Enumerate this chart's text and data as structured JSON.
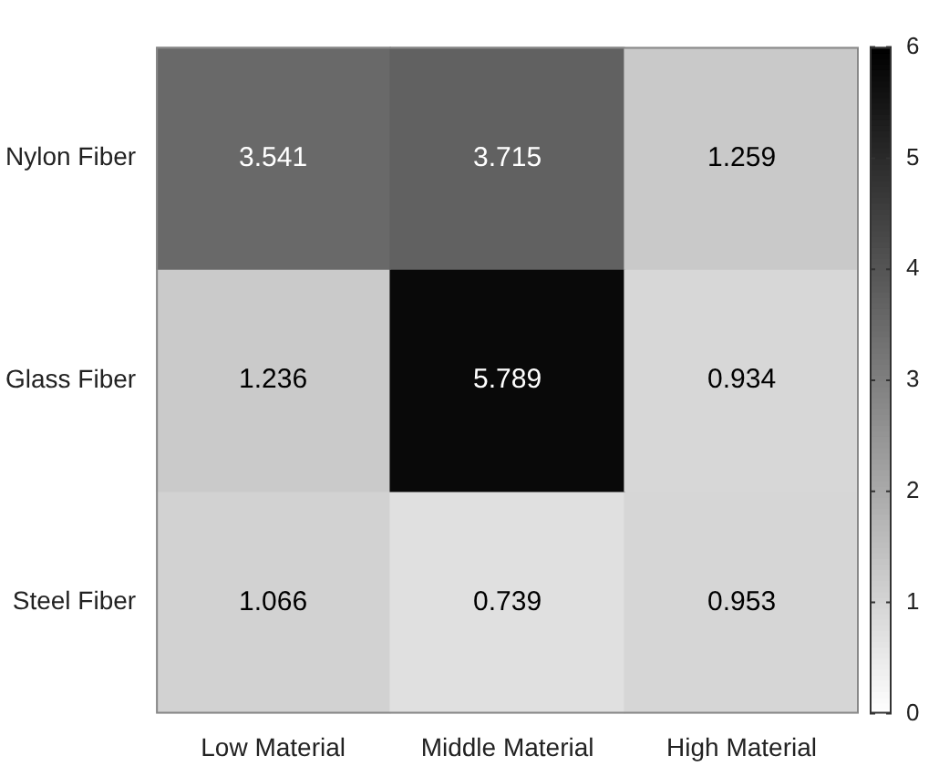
{
  "chart_data": {
    "type": "heatmap",
    "categories": [
      "Low Material",
      "Middle Material",
      "High Material"
    ],
    "y_categories": [
      "Nylon Fiber",
      "Glass Fiber",
      "Steel Fiber"
    ],
    "cells": [
      [
        3.541,
        3.715,
        1.259
      ],
      [
        1.236,
        5.789,
        0.934
      ],
      [
        1.066,
        0.739,
        0.953
      ]
    ],
    "data_labels": true,
    "clim": [
      0,
      6
    ],
    "cticks": [
      0,
      1,
      2,
      3,
      4,
      5,
      6
    ]
  }
}
